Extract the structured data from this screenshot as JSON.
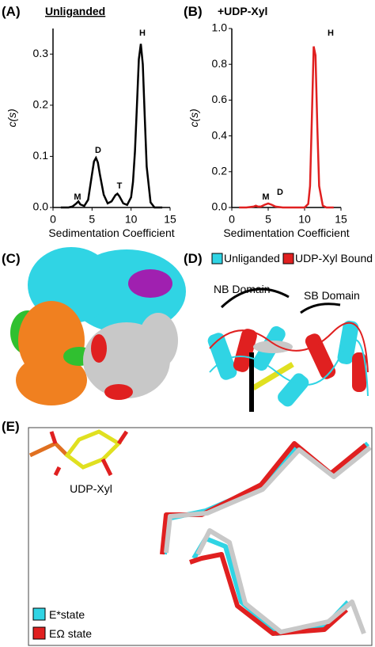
{
  "chart_data": [
    {
      "type": "line",
      "panel_label": "(A)",
      "subtitle": "Unliganded",
      "xlabel": "Sedimentation Coefficient",
      "ylabel": "c(s)",
      "x": [
        1,
        2,
        2.5,
        3,
        3.25,
        3.5,
        4,
        4.5,
        5,
        5.25,
        5.5,
        5.75,
        6,
        6.5,
        7,
        7.5,
        8,
        8.25,
        8.5,
        9,
        9.5,
        10,
        10.25,
        10.5,
        10.75,
        11,
        11.25,
        11.5,
        11.75,
        12,
        12.5,
        13,
        14
      ],
      "values": [
        0,
        0,
        0.002,
        0.008,
        0.012,
        0.006,
        0.003,
        0.015,
        0.065,
        0.09,
        0.097,
        0.088,
        0.065,
        0.025,
        0.008,
        0.012,
        0.024,
        0.027,
        0.022,
        0.008,
        0.005,
        0.02,
        0.05,
        0.11,
        0.2,
        0.29,
        0.32,
        0.28,
        0.18,
        0.08,
        0.01,
        0,
        0
      ],
      "color": "#000000",
      "xlim": [
        0,
        15
      ],
      "xticks": [
        0,
        5,
        10,
        15
      ],
      "ylim": [
        0,
        0.35
      ],
      "yticks": [
        {
          "value": 0,
          "label": "0.0"
        },
        0.1,
        0.2,
        0.3
      ],
      "annotations": [
        "M",
        "D",
        "T",
        "H"
      ]
    },
    {
      "type": "line",
      "panel_label": "(B)",
      "subtitle": "+UDP-Xyl",
      "xlabel": "Sedimentation Coefficient",
      "ylabel": "c(s)",
      "x": [
        1,
        2,
        3,
        3.3,
        3.6,
        4,
        4.5,
        5,
        5.5,
        6,
        7,
        8,
        9,
        10,
        10.5,
        10.75,
        11,
        11.25,
        11.5,
        11.75,
        12,
        12.5,
        13,
        14
      ],
      "values": [
        0,
        0,
        0.005,
        0.01,
        0.005,
        0.005,
        0.015,
        0.022,
        0.015,
        0.005,
        0,
        0,
        0,
        0,
        0.02,
        0.12,
        0.5,
        0.9,
        0.85,
        0.45,
        0.12,
        0.01,
        0,
        0
      ],
      "color": "#e02020",
      "xlim": [
        0,
        15
      ],
      "xticks": [
        0,
        5,
        10,
        15
      ],
      "ylim": [
        0,
        1
      ],
      "yticks": [
        {
          "value": 0,
          "label": "0.0"
        },
        0.2,
        0.4,
        0.6,
        0.8,
        {
          "value": 1,
          "label": "1.0"
        }
      ],
      "annotations": [
        "M",
        "D",
        "H"
      ]
    }
  ],
  "panels": {
    "c": {
      "label": "(C)"
    },
    "d": {
      "label": "(D)",
      "legend": [
        "Unliganded",
        "UDP-Xyl Bound"
      ],
      "domains": [
        "NB Domain",
        "SB Domain"
      ]
    },
    "e": {
      "label": "(E)",
      "ligand": "UDP-Xyl",
      "legend": [
        "E*state",
        "EΩ state"
      ]
    }
  }
}
